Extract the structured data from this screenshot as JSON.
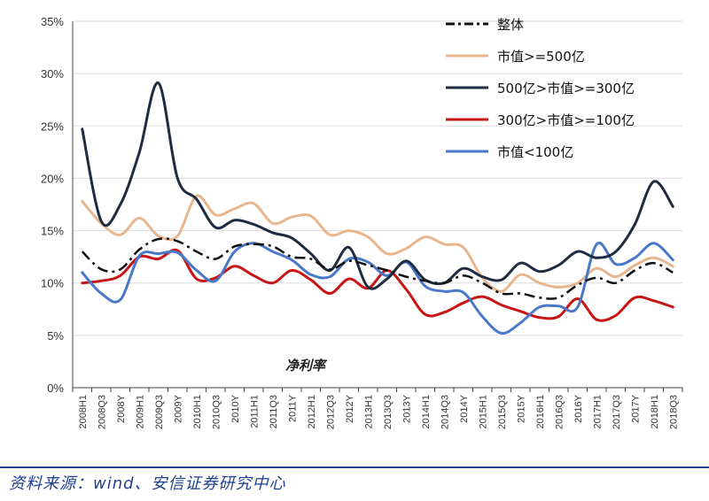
{
  "chart_data": {
    "type": "line",
    "inner_label": "净利率",
    "source": "资料来源：wind、安信证券研究中心",
    "y_ticks": [
      "0%",
      "5%",
      "10%",
      "15%",
      "20%",
      "25%",
      "30%",
      "35%"
    ],
    "ylim": [
      0,
      35
    ],
    "categories": [
      "2008H1",
      "2008Q3",
      "2008Y",
      "2009H1",
      "2009Q3",
      "2009Y",
      "2010H1",
      "2010Q3",
      "2010Y",
      "2011H1",
      "2011Q3",
      "2011Y",
      "2012H1",
      "2012Q3",
      "2012Y",
      "2013H1",
      "2013Q3",
      "2013Y",
      "2014H1",
      "2014Q3",
      "2014Y",
      "2015H1",
      "2015Q3",
      "2015Y",
      "2016H1",
      "2016Q3",
      "2016Y",
      "2017H1",
      "2017Q3",
      "2017Y",
      "2018H1",
      "2018Q3"
    ],
    "series": [
      {
        "name": "整体",
        "color": "#111111",
        "style": "dashdot",
        "values": [
          13.0,
          11.3,
          11.3,
          13.2,
          14.2,
          14.0,
          13.0,
          12.3,
          13.5,
          13.7,
          13.5,
          12.5,
          12.3,
          11.3,
          12.1,
          11.7,
          11.2,
          10.6,
          10.2,
          10.0,
          10.7,
          10.0,
          9.0,
          9.0,
          8.6,
          8.6,
          9.8,
          10.5,
          10.0,
          11.2,
          11.9,
          11.0
        ]
      },
      {
        "name": "市值>=500亿",
        "color": "#e8b68e",
        "style": "solid",
        "values": [
          17.8,
          15.7,
          14.6,
          16.2,
          14.5,
          14.5,
          18.3,
          16.5,
          17.1,
          17.6,
          15.7,
          16.3,
          16.4,
          14.6,
          15.0,
          14.4,
          12.8,
          13.3,
          14.4,
          13.7,
          13.4,
          10.5,
          9.2,
          10.8,
          10.0,
          9.6,
          10.0,
          11.4,
          10.6,
          11.7,
          12.4,
          11.6
        ]
      },
      {
        "name": "500亿>市值>=300亿",
        "color": "#1e2b40",
        "style": "solid",
        "values": [
          24.7,
          15.9,
          17.5,
          22.5,
          29.1,
          20.0,
          18.0,
          15.3,
          16.0,
          15.6,
          14.8,
          14.3,
          12.8,
          11.2,
          13.4,
          9.6,
          10.4,
          12.1,
          10.3,
          10.0,
          11.4,
          10.6,
          10.3,
          11.9,
          11.1,
          11.7,
          13.0,
          12.4,
          13.0,
          15.6,
          19.7,
          17.3
        ]
      },
      {
        "name": "300亿>市值>=100亿",
        "color": "#c81414",
        "style": "solid",
        "values": [
          10.0,
          10.2,
          10.7,
          12.5,
          12.3,
          13.1,
          10.4,
          10.5,
          11.6,
          10.7,
          10.0,
          11.2,
          10.3,
          9.0,
          10.4,
          9.5,
          11.2,
          9.4,
          7.0,
          7.2,
          8.1,
          8.7,
          7.9,
          7.3,
          6.7,
          6.8,
          8.5,
          6.5,
          6.9,
          8.6,
          8.3,
          7.7
        ]
      },
      {
        "name": "市值<100亿",
        "color": "#4a78c8",
        "style": "solid",
        "values": [
          11.0,
          9.0,
          8.4,
          12.6,
          12.8,
          12.9,
          11.2,
          10.2,
          13.0,
          13.8,
          13.0,
          12.2,
          10.8,
          10.6,
          12.3,
          12.0,
          10.7,
          12.0,
          9.7,
          9.2,
          9.1,
          6.8,
          5.2,
          6.2,
          7.7,
          7.8,
          7.7,
          13.7,
          11.8,
          12.4,
          13.8,
          12.2
        ]
      }
    ]
  }
}
